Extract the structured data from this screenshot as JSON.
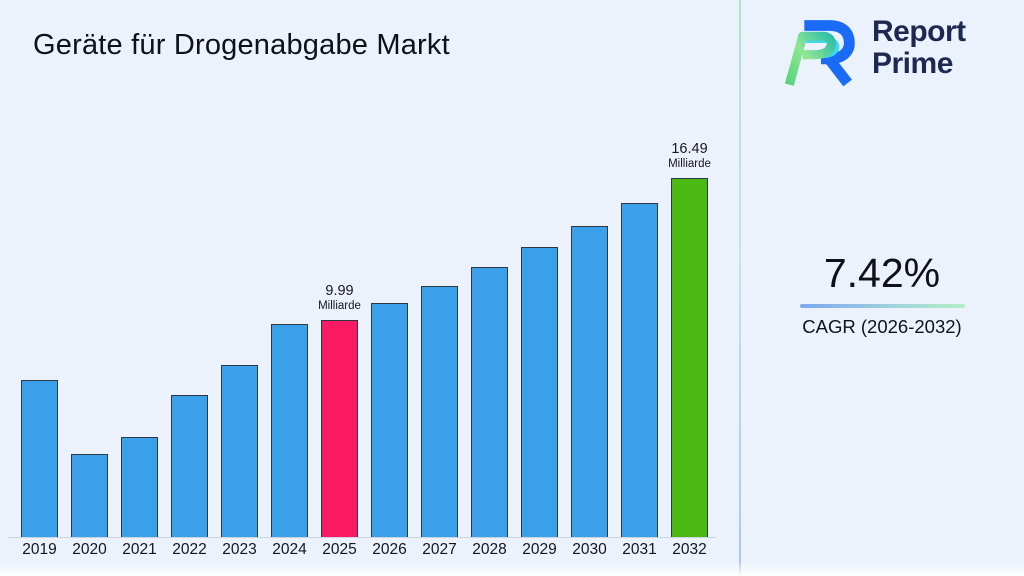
{
  "header": {
    "title": "Geräte für Drogenabgabe Markt"
  },
  "brand": {
    "line1": "Report",
    "line2": "Prime"
  },
  "cagr": {
    "value": "7.42%",
    "label": "CAGR (2026-2032)"
  },
  "chart_data": {
    "type": "bar",
    "title": "Geräte für Drogenabgabe Markt",
    "categories": [
      "2019",
      "2020",
      "2021",
      "2022",
      "2023",
      "2024",
      "2025",
      "2026",
      "2027",
      "2028",
      "2029",
      "2030",
      "2031",
      "2032"
    ],
    "values": [
      7.2,
      3.8,
      4.6,
      6.5,
      7.9,
      9.8,
      9.99,
      10.73,
      11.53,
      12.38,
      13.3,
      14.29,
      15.35,
      16.49
    ],
    "unit": "Milliarde",
    "xlabel": "",
    "ylabel": "",
    "ylim": [
      0,
      16.49
    ],
    "grid": false,
    "y_axis_visible": false,
    "legend": "none",
    "annotations": [
      {
        "category": "2025",
        "value": "9.99",
        "unit": "Milliarde"
      },
      {
        "category": "2032",
        "value": "16.49",
        "unit": "Milliarde"
      }
    ],
    "colors": {
      "default_bar": "#3aa0e9",
      "highlights": {
        "2025": "#fa1a64",
        "2032": "#4cb813"
      },
      "bar_border": "#2e3842",
      "background": "#ecf2fb"
    }
  }
}
